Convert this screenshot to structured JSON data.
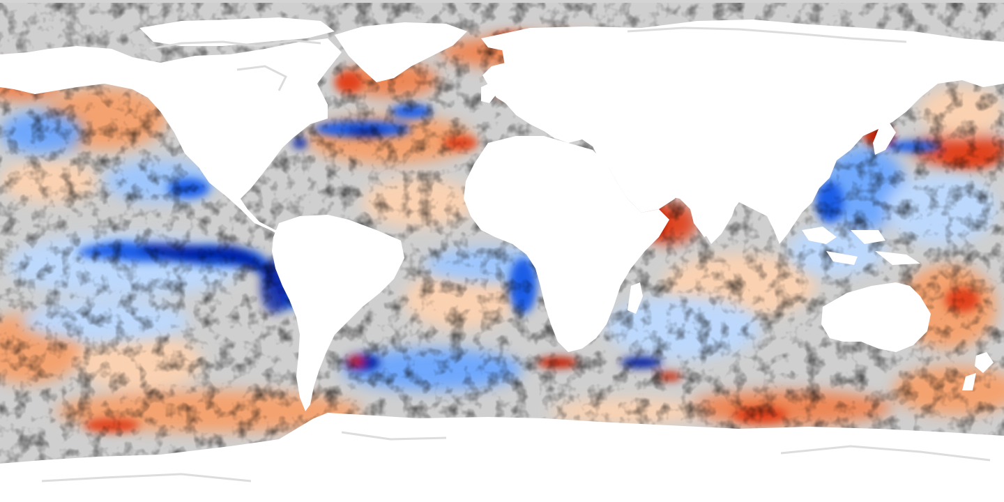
{
  "map": {
    "projection": "equirectangular",
    "variable": "sea-surface-temperature-anomaly",
    "colors": {
      "land": "#ffffff",
      "ocean_neutral": "#cfcfcf",
      "sea_ice_and_lakes": "#d9d9d9",
      "warm_light": "#fdd2b0",
      "warm_mid": "#f7a06a",
      "warm_strong": "#e0431a",
      "warm_extreme": "#b01000",
      "cool_light": "#bcd9ff",
      "cool_mid": "#6aa6ff",
      "cool_strong": "#1f5de6",
      "cool_extreme": "#001a9c"
    },
    "visible_regions": [
      "north-atlantic-warm-anomaly",
      "gulf-stream-cool-anomaly",
      "equatorial-pacific-cool-tongue",
      "southern-ocean-warm-band",
      "mediterranean-warm-anomaly",
      "kuroshio-warm-anomaly",
      "antarctic-circumpolar-mixed-anomaly",
      "arabian-sea-warm-anomaly",
      "benguela-cool-anomaly",
      "north-pacific-warm-anomaly"
    ]
  }
}
